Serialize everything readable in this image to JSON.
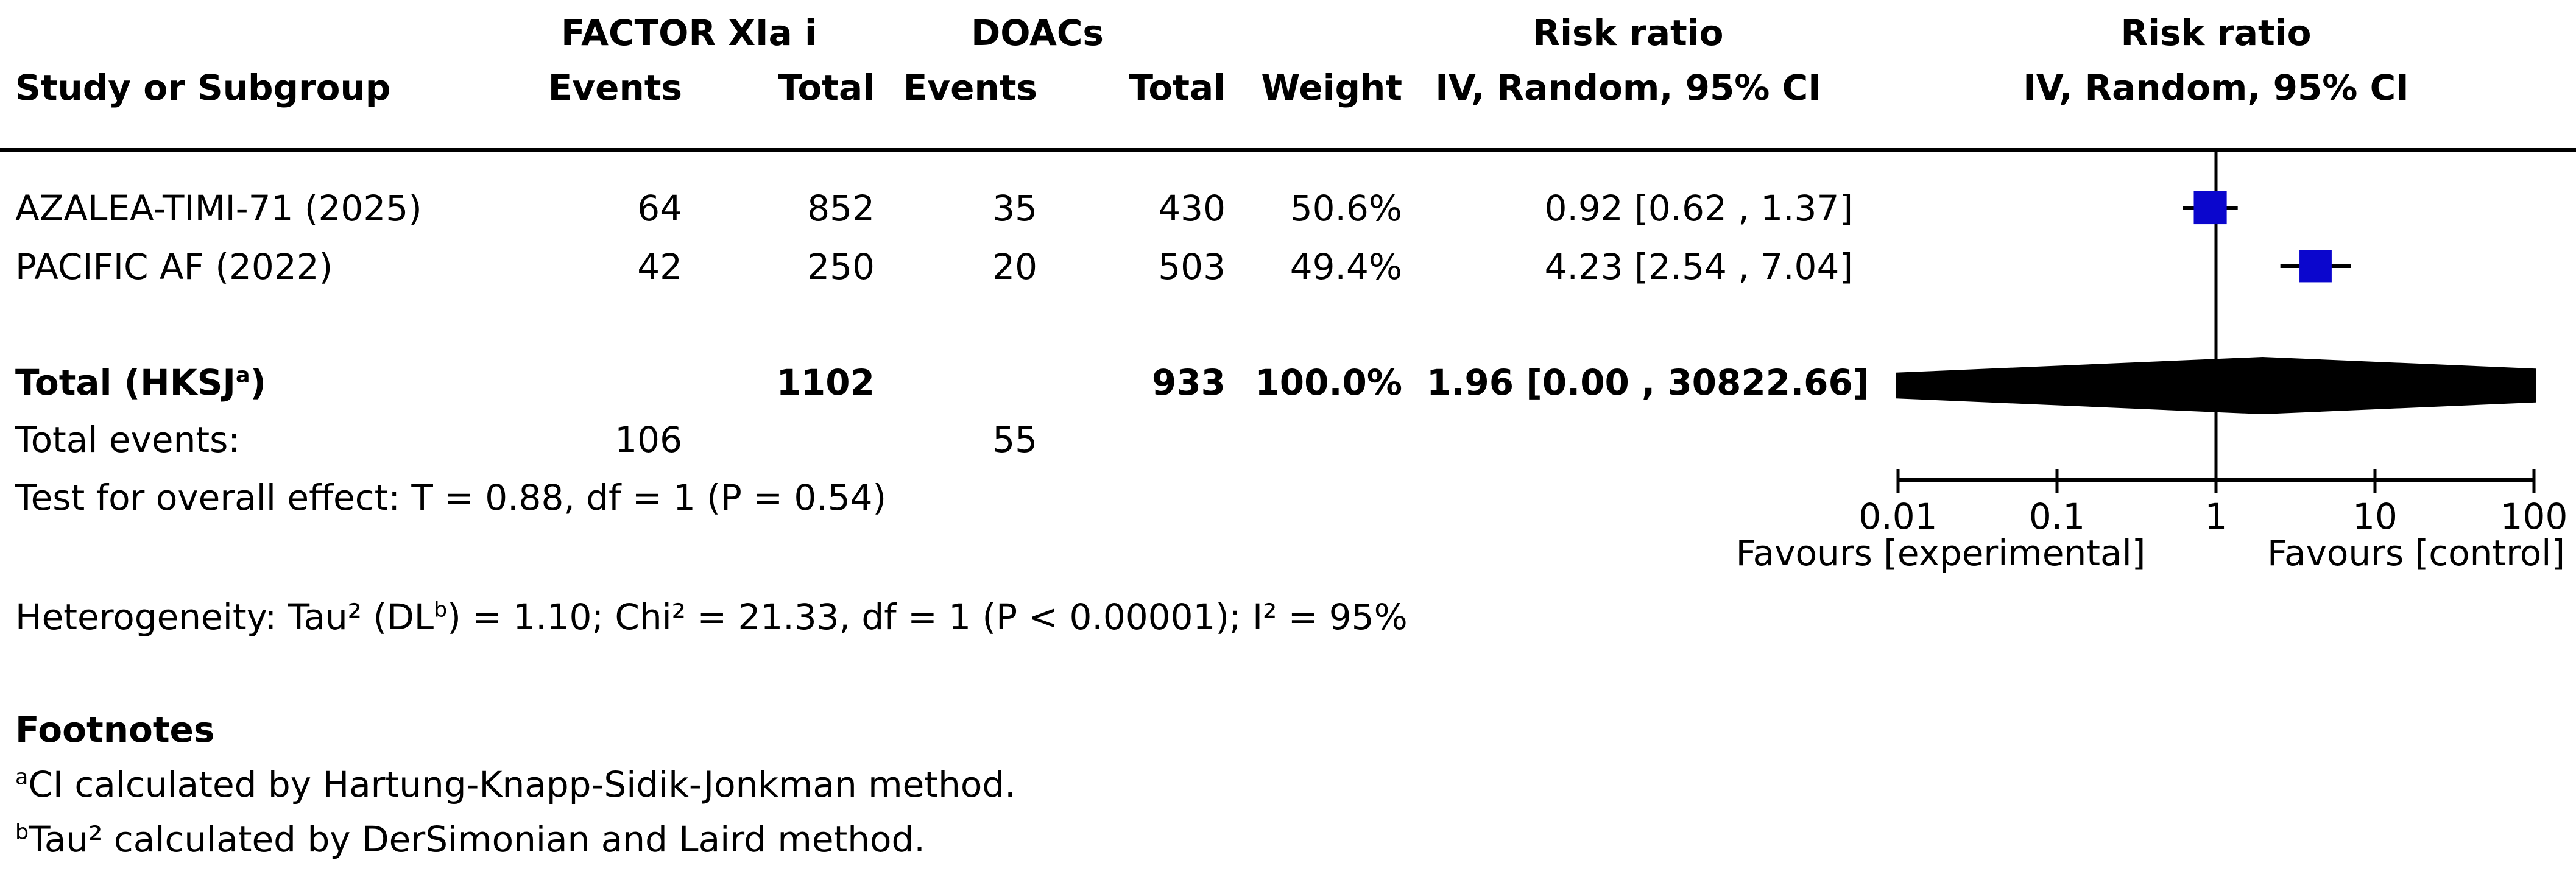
{
  "header": {
    "study_col": "Study or Subgroup",
    "events_col": "Events",
    "total_col": "Total",
    "weight_col": "Weight",
    "method_col": "IV, Random, 95% CI",
    "effect_col_title": "Risk ratio",
    "effect_plot_title": "Risk ratio",
    "method_plot_col": "IV, Random, 95% CI"
  },
  "footnotes": {
    "title": "Footnotes",
    "a_sup": "a",
    "a_text": "CI calculated by Hartung-Knapp-Sidik-Jonkman method.",
    "b_sup": "b",
    "b_text": "Tau² calculated by DerSimonian and Laird method."
  },
  "chart_data": {
    "type": "forest",
    "x_scale": "log10",
    "x_ticks": [
      "0.01",
      "0.1",
      "1",
      "10",
      "100"
    ],
    "x_tick_values": [
      0.01,
      0.1,
      1,
      10,
      100
    ],
    "x_range": [
      0.01,
      100
    ],
    "effect_measure": "Risk ratio",
    "model": "IV, Random, 95% CI",
    "group_experimental": "FACTOR XIa i",
    "group_control": "DOACs",
    "favours_left": "Favours [experimental]",
    "favours_right": "Favours [control]",
    "studies": [
      {
        "name": "AZALEA-TIMI-71 (2025)",
        "exp_events": "64",
        "exp_total": "852",
        "ctrl_events": "35",
        "ctrl_total": "430",
        "weight": "50.6%",
        "weight_pct": 50.6,
        "ci_text": "0.92 [0.62 , 1.37]",
        "rr": 0.92,
        "ci_low": 0.62,
        "ci_high": 1.37
      },
      {
        "name": "PACIFIC AF (2022)",
        "exp_events": "42",
        "exp_total": "250",
        "ctrl_events": "20",
        "ctrl_total": "503",
        "weight": "49.4%",
        "weight_pct": 49.4,
        "ci_text": "4.23 [2.54 , 7.04]",
        "rr": 4.23,
        "ci_low": 2.54,
        "ci_high": 7.04
      }
    ],
    "total": {
      "label_pre": "Total (HKSJ",
      "label_sup": "a",
      "label_post": ")",
      "exp_total": "1102",
      "ctrl_total": "933",
      "weight": "100.0%",
      "weight_pct": 100.0,
      "ci_text": "1.96 [0.00 , 30822.66]",
      "rr": 1.96,
      "ci_low_text": "0.00",
      "ci_high": 30822.66
    },
    "total_events": {
      "label": "Total events:",
      "exp": "106",
      "ctrl": "55"
    },
    "overall_effect_test": "Test for overall effect: T = 0.88, df = 1 (P = 0.54)",
    "heterogeneity_pre": "Heterogeneity: Tau² (DL",
    "heterogeneity_sup": "b",
    "heterogeneity_post": ") = 1.10; Chi² = 21.33, df = 1 (P < 0.00001); I² = 95%",
    "marker_color": "#0B06CD",
    "diamond_color": "#000000",
    "line_color": "#000000"
  }
}
